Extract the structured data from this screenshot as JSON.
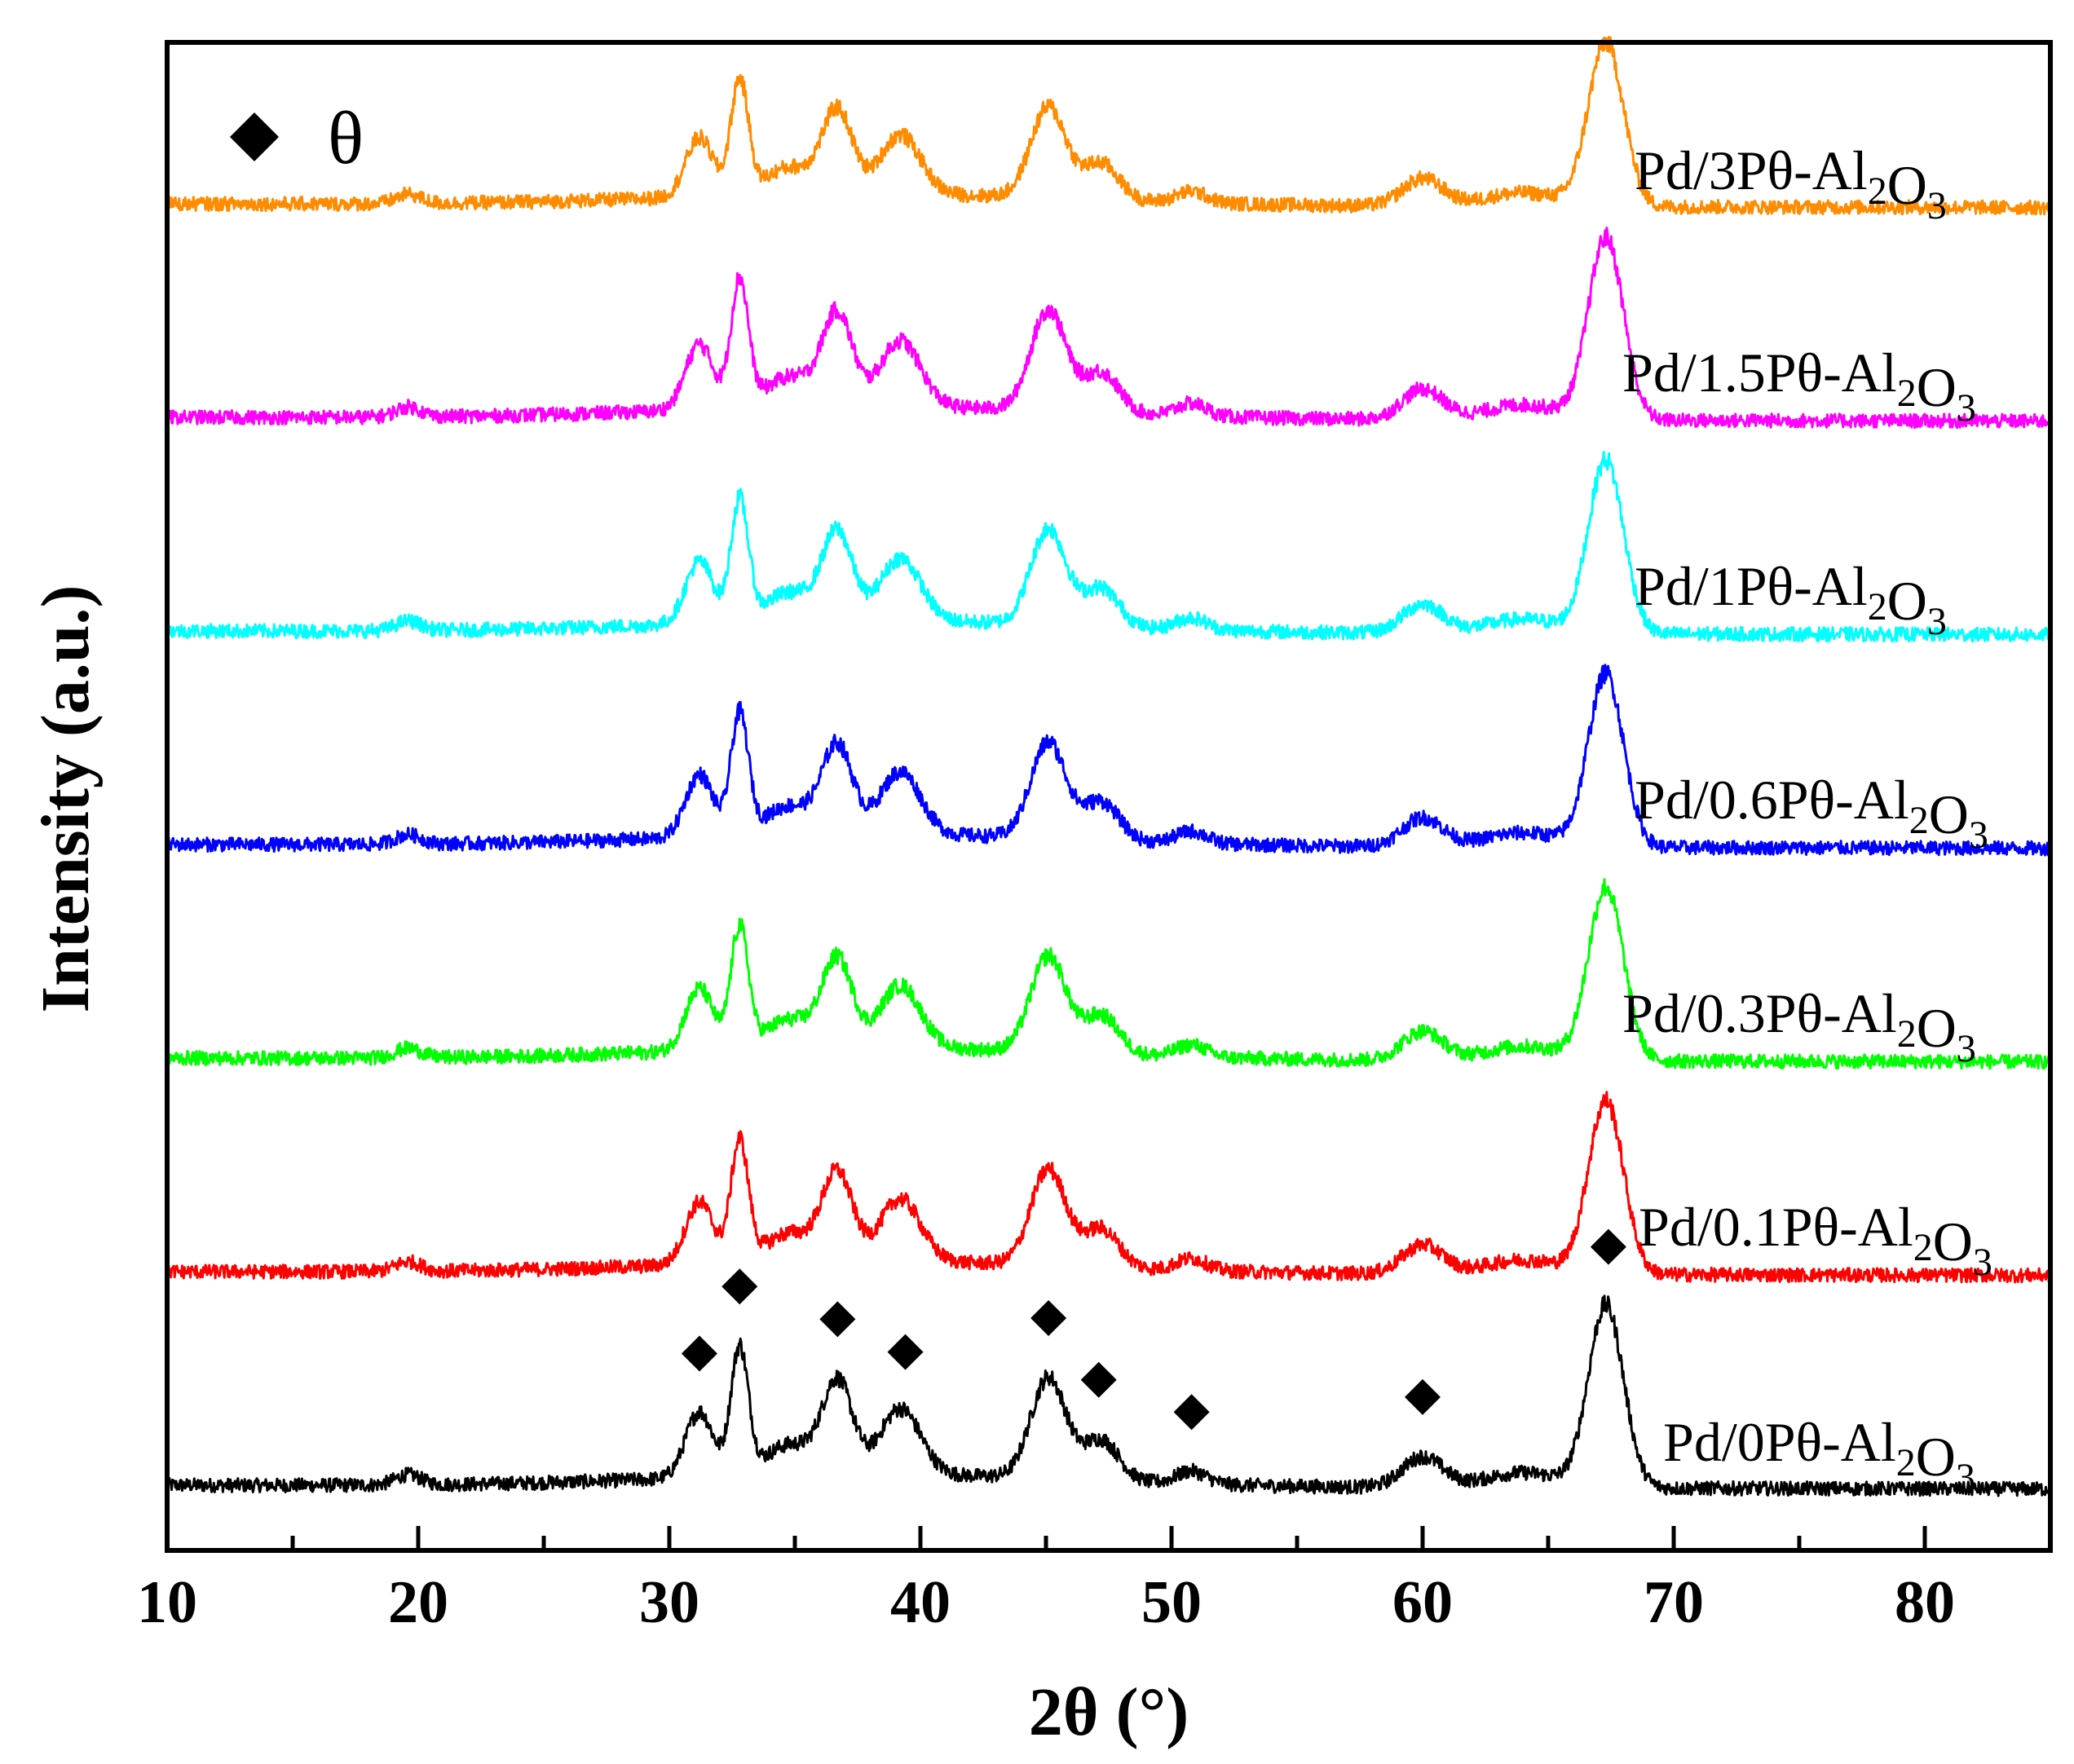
{
  "chart_data": {
    "type": "line",
    "title": "",
    "xlabel": "2θ (°)",
    "ylabel": "Intensity (a.u.)",
    "xlim": [
      10,
      85
    ],
    "x_ticks": [
      10,
      20,
      30,
      40,
      50,
      60,
      70,
      80
    ],
    "y_ticks_shown": false,
    "legend": {
      "label": "θ",
      "marker": "diamond",
      "placement": "top-left"
    },
    "phase_marker_positions_2theta": [
      31.2,
      32.8,
      36.7,
      39.4,
      45.1,
      47.1,
      50.8,
      60.0,
      67.4
    ],
    "series": [
      {
        "name": "Pd/0Pθ-Al2O3",
        "label_main": "Pd/0Pθ-Al",
        "sub1": "2",
        "mid": "O",
        "sub2": "3",
        "color": "#000000",
        "offset": 0,
        "intensity_scale": 1.0
      },
      {
        "name": "Pd/0.1Pθ-Al2O3",
        "label_main": "Pd/0.1Pθ-Al",
        "sub1": "2",
        "mid": "O",
        "sub2": "3",
        "color": "#ff0000",
        "offset": 1,
        "intensity_scale": 0.95
      },
      {
        "name": "Pd/0.3Pθ-Al2O3",
        "label_main": "Pd/0.3Pθ-Al",
        "sub1": "2",
        "mid": "O",
        "sub2": "3",
        "color": "#00ff00",
        "offset": 2,
        "intensity_scale": 0.95
      },
      {
        "name": "Pd/0.6Pθ-Al2O3",
        "label_main": "Pd/0.6Pθ-Al",
        "sub1": "2",
        "mid": "O",
        "sub2": "3",
        "color": "#0000ff",
        "offset": 3,
        "intensity_scale": 0.95
      },
      {
        "name": "Pd/1Pθ-Al2O3",
        "label_main": "Pd/1Pθ-Al",
        "sub1": "2",
        "mid": "O",
        "sub2": "3",
        "color": "#00ffff",
        "offset": 4,
        "intensity_scale": 0.95
      },
      {
        "name": "Pd/1.5Pθ-Al2O3",
        "label_main": "Pd/1.5Pθ-Al",
        "sub1": "2",
        "mid": "O",
        "sub2": "3",
        "color": "#ff00ff",
        "offset": 5,
        "intensity_scale": 1.0
      },
      {
        "name": "Pd/3Pθ-Al2O3",
        "label_main": "Pd/3Pθ-Al",
        "sub1": "2",
        "mid": "O",
        "sub2": "3",
        "color": "#ff8c00",
        "offset": 6,
        "intensity_scale": 0.9
      }
    ],
    "peaks": [
      {
        "pos": 19.6,
        "height": 0.04,
        "width": 0.5
      },
      {
        "pos": 31.2,
        "height": 0.26,
        "width": 0.55
      },
      {
        "pos": 32.8,
        "height": 0.5,
        "width": 0.35
      },
      {
        "pos": 34.8,
        "height": 0.12,
        "width": 1.0
      },
      {
        "pos": 36.7,
        "height": 0.36,
        "width": 0.6
      },
      {
        "pos": 39.2,
        "height": 0.26,
        "width": 0.8
      },
      {
        "pos": 45.1,
        "height": 0.4,
        "width": 0.7
      },
      {
        "pos": 47.2,
        "height": 0.16,
        "width": 0.7
      },
      {
        "pos": 50.8,
        "height": 0.05,
        "width": 0.6
      },
      {
        "pos": 60.0,
        "height": 0.12,
        "width": 0.8
      },
      {
        "pos": 64.0,
        "height": 0.06,
        "width": 1.5
      },
      {
        "pos": 67.3,
        "height": 0.72,
        "width": 0.7
      }
    ]
  }
}
